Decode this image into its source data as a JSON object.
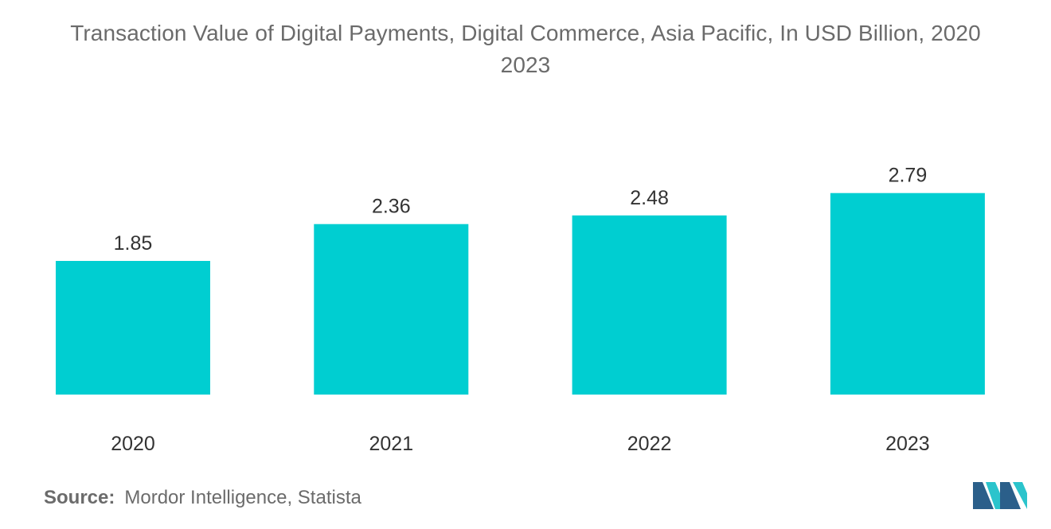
{
  "title_line1": "Transaction Value of Digital Payments, Digital Commerce, Asia Pacific, In USD Billion, 2020",
  "title_line2": "2023",
  "source_label": "Source:",
  "source_text": "Mordor Intelligence, Statista",
  "colors": {
    "bar": "#00ced1",
    "logo_dark": "#2b5f8a",
    "logo_light": "#2bc4cc"
  },
  "logo_icon": "mordor-intelligence-logo",
  "chart_data": {
    "type": "bar",
    "title": "Transaction Value of Digital Payments, Digital Commerce, Asia Pacific, In USD Billion, 2020 2023",
    "categories": [
      "2020",
      "2021",
      "2022",
      "2023"
    ],
    "values": [
      1.85,
      2.36,
      2.48,
      2.79
    ],
    "value_labels": [
      "1.85",
      "2.36",
      "2.48",
      "2.79"
    ],
    "xlabel": "",
    "ylabel": "",
    "ylim": [
      0,
      3.0
    ],
    "grid": false,
    "legend": "none"
  }
}
